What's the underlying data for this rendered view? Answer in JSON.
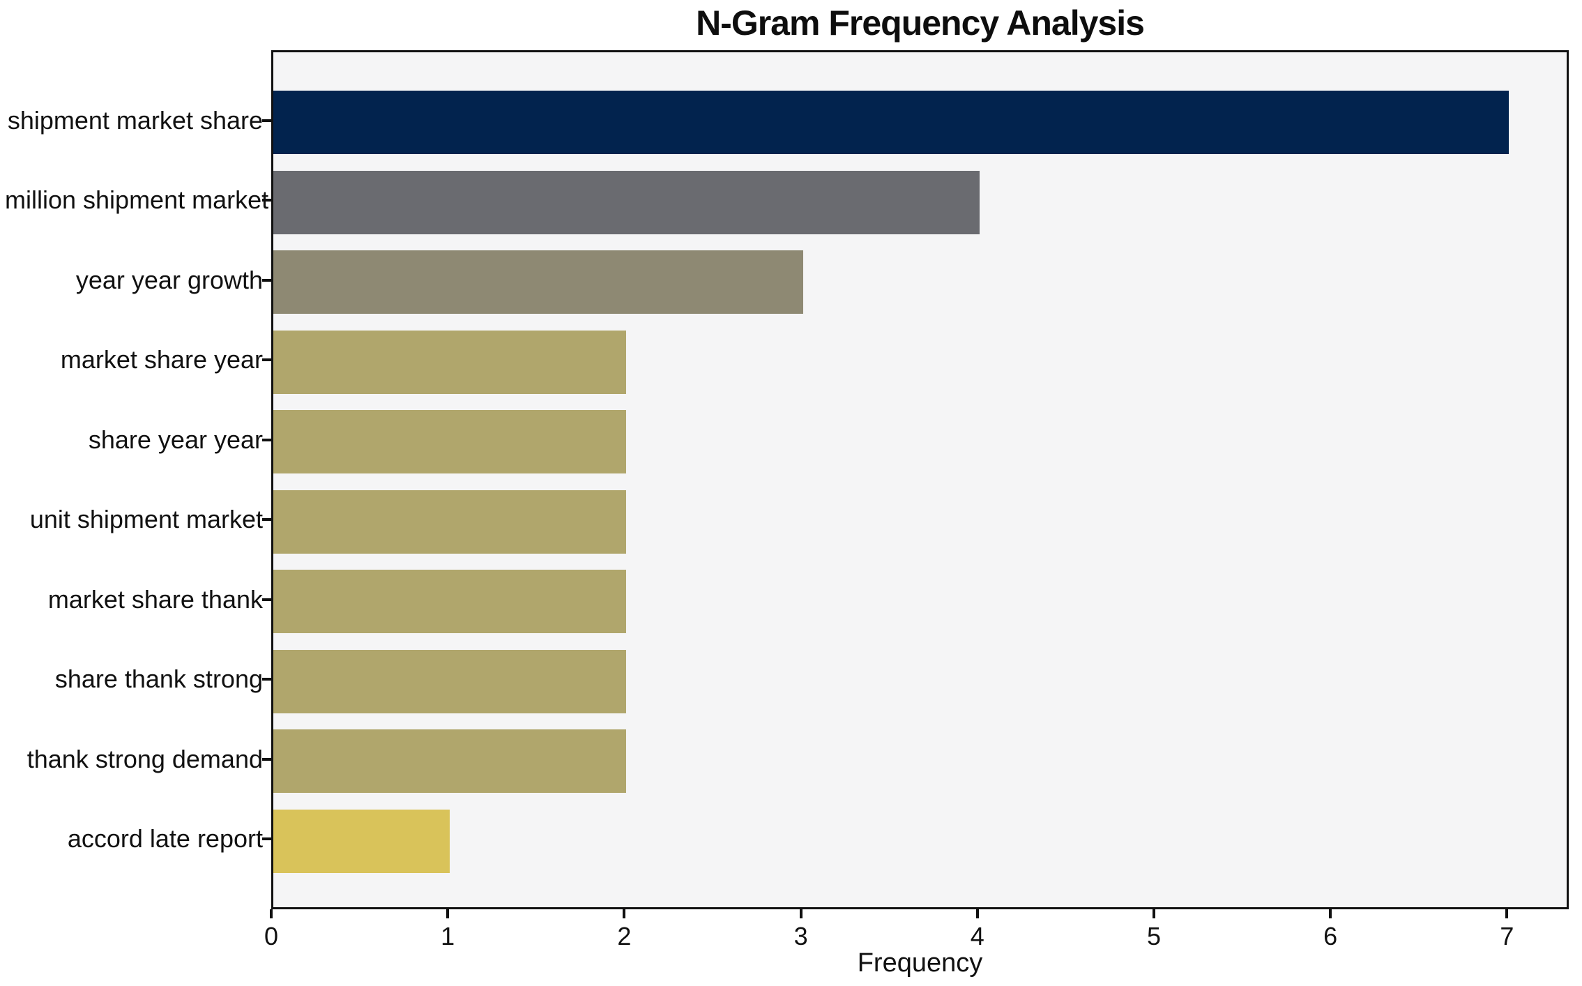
{
  "chart_data": {
    "type": "bar",
    "orientation": "horizontal",
    "title": "N-Gram Frequency Analysis",
    "xlabel": "Frequency",
    "ylabel": "",
    "categories": [
      "shipment market share",
      "million shipment market",
      "year year growth",
      "market share year",
      "share year year",
      "unit shipment market",
      "market share thank",
      "share thank strong",
      "thank strong demand",
      "accord late report"
    ],
    "values": [
      7,
      4,
      3,
      2,
      2,
      2,
      2,
      2,
      2,
      1
    ],
    "bar_colors": [
      "#02234e",
      "#6a6b70",
      "#8e8973",
      "#b0a66c",
      "#b0a66c",
      "#b0a66c",
      "#b0a66c",
      "#b0a66c",
      "#b0a66c",
      "#d9c35a"
    ],
    "xlim": [
      0,
      7.35
    ],
    "x_ticks": [
      0,
      1,
      2,
      3,
      4,
      5,
      6,
      7
    ],
    "grid": false,
    "legend": null,
    "plot_background": "#f5f5f6",
    "figure_background": "#ffffff",
    "spine_color": "#111111",
    "text_color": "#111111"
  }
}
